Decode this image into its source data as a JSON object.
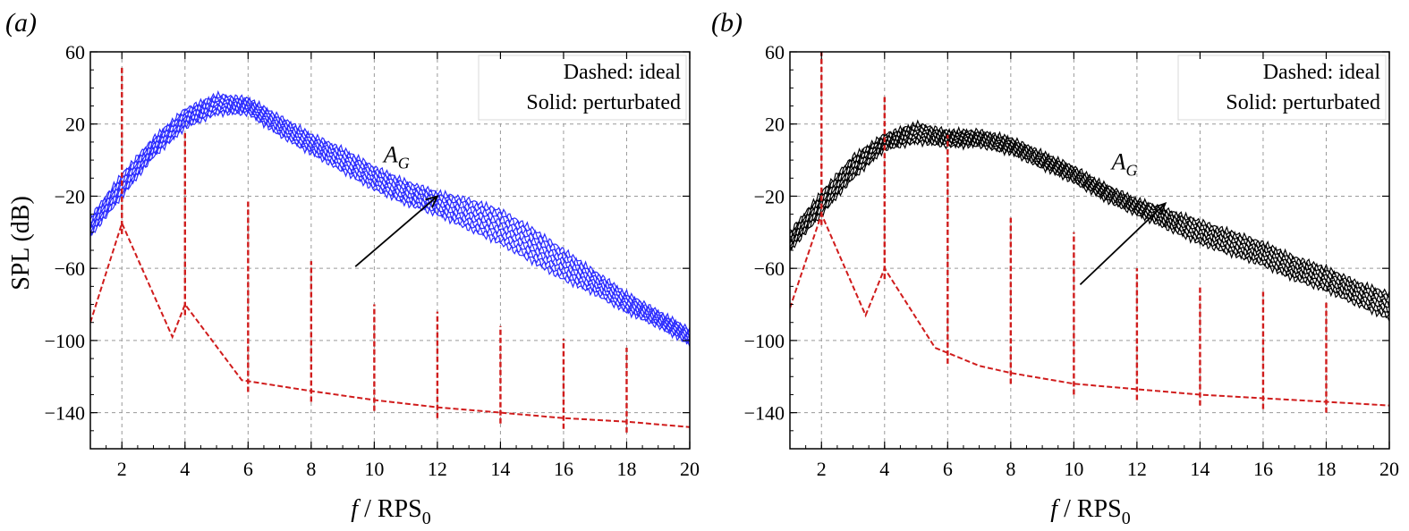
{
  "figure": {
    "panels": [
      {
        "label": "(a)",
        "legend": [
          "Dashed: ideal",
          "Solid: perturbated"
        ],
        "annotation": "A_G",
        "colors": {
          "solid": "#2b2bff",
          "dashed": "#d01c1c"
        }
      },
      {
        "label": "(b)",
        "legend": [
          "Dashed: ideal",
          "Solid: perturbated"
        ],
        "annotation": "A_G",
        "colors": {
          "solid": "#000000",
          "dashed": "#d01c1c"
        }
      }
    ]
  },
  "chart_data": [
    {
      "type": "line",
      "xlabel": "f / RPS0",
      "ylabel": "SPL (dB)",
      "xlim": [
        1,
        20
      ],
      "ylim": [
        -160,
        60
      ],
      "xticks": [
        2,
        4,
        6,
        8,
        10,
        12,
        14,
        16,
        18,
        20
      ],
      "yticks": [
        60,
        20,
        -20,
        -60,
        -100,
        -140
      ],
      "grid": true,
      "legend_position": "top-right",
      "ideal_peaks": [
        {
          "x": 2,
          "y": 52
        },
        {
          "x": 4,
          "y": 15
        },
        {
          "x": 6,
          "y": -22
        },
        {
          "x": 8,
          "y": -56
        },
        {
          "x": 10,
          "y": -80
        },
        {
          "x": 12,
          "y": -84
        },
        {
          "x": 14,
          "y": -92
        },
        {
          "x": 16,
          "y": -99
        },
        {
          "x": 18,
          "y": -104
        }
      ],
      "ideal_floor": [
        {
          "x": 1,
          "y": -90
        },
        {
          "x": 2,
          "y": -35
        },
        {
          "x": 3.6,
          "y": -98
        },
        {
          "x": 4,
          "y": -80
        },
        {
          "x": 5.8,
          "y": -122
        },
        {
          "x": 8,
          "y": -128
        },
        {
          "x": 10,
          "y": -133
        },
        {
          "x": 12,
          "y": -137
        },
        {
          "x": 14,
          "y": -140
        },
        {
          "x": 16,
          "y": -143
        },
        {
          "x": 18,
          "y": -145
        },
        {
          "x": 20,
          "y": -148
        }
      ],
      "perturbated_band": {
        "x": [
          1,
          2,
          3,
          4,
          5,
          6,
          7,
          8,
          9,
          10,
          11,
          12,
          13,
          14,
          15,
          16,
          17,
          18,
          19,
          20
        ],
        "lower": [
          -42,
          -20,
          2,
          18,
          26,
          26,
          14,
          4,
          -6,
          -16,
          -24,
          -30,
          -38,
          -46,
          -56,
          -66,
          -74,
          -84,
          -92,
          -102
        ],
        "upper": [
          -32,
          -8,
          12,
          28,
          36,
          34,
          24,
          14,
          6,
          -4,
          -12,
          -18,
          -22,
          -28,
          -38,
          -50,
          -62,
          -74,
          -84,
          -94
        ]
      },
      "arrow": {
        "from": [
          9.4,
          -59
        ],
        "to": [
          12,
          -20
        ]
      }
    },
    {
      "type": "line",
      "xlabel": "f / RPS0",
      "ylabel": "",
      "xlim": [
        1,
        20
      ],
      "ylim": [
        -160,
        60
      ],
      "xticks": [
        2,
        4,
        6,
        8,
        10,
        12,
        14,
        16,
        18,
        20
      ],
      "yticks": [
        60,
        20,
        -20,
        -60,
        -100,
        -140
      ],
      "grid": true,
      "legend_position": "top-right",
      "ideal_peaks": [
        {
          "x": 2,
          "y": 60
        },
        {
          "x": 4,
          "y": 35
        },
        {
          "x": 6,
          "y": 14
        },
        {
          "x": 8,
          "y": -32
        },
        {
          "x": 10,
          "y": -40
        },
        {
          "x": 12,
          "y": -60
        },
        {
          "x": 14,
          "y": -70
        },
        {
          "x": 16,
          "y": -73
        },
        {
          "x": 18,
          "y": -78
        }
      ],
      "ideal_floor": [
        {
          "x": 1,
          "y": -82
        },
        {
          "x": 2,
          "y": -30
        },
        {
          "x": 3.4,
          "y": -86
        },
        {
          "x": 4,
          "y": -60
        },
        {
          "x": 5.6,
          "y": -104
        },
        {
          "x": 7,
          "y": -114
        },
        {
          "x": 8,
          "y": -118
        },
        {
          "x": 10,
          "y": -124
        },
        {
          "x": 12,
          "y": -127
        },
        {
          "x": 14,
          "y": -130
        },
        {
          "x": 16,
          "y": -132
        },
        {
          "x": 18,
          "y": -134
        },
        {
          "x": 20,
          "y": -136
        }
      ],
      "perturbated_band": {
        "x": [
          1,
          2,
          3,
          4,
          5,
          6,
          7,
          8,
          9,
          10,
          11,
          12,
          13,
          14,
          15,
          16,
          17,
          18,
          19,
          20
        ],
        "lower": [
          -50,
          -30,
          -10,
          6,
          10,
          8,
          8,
          4,
          -4,
          -12,
          -22,
          -30,
          -38,
          -46,
          -52,
          -58,
          -66,
          -72,
          -80,
          -88
        ],
        "upper": [
          -40,
          -18,
          2,
          14,
          20,
          16,
          16,
          12,
          4,
          -4,
          -14,
          -22,
          -28,
          -34,
          -40,
          -46,
          -54,
          -60,
          -68,
          -74
        ]
      },
      "arrow": {
        "from": [
          10.2,
          -69
        ],
        "to": [
          12.9,
          -24
        ]
      }
    }
  ]
}
